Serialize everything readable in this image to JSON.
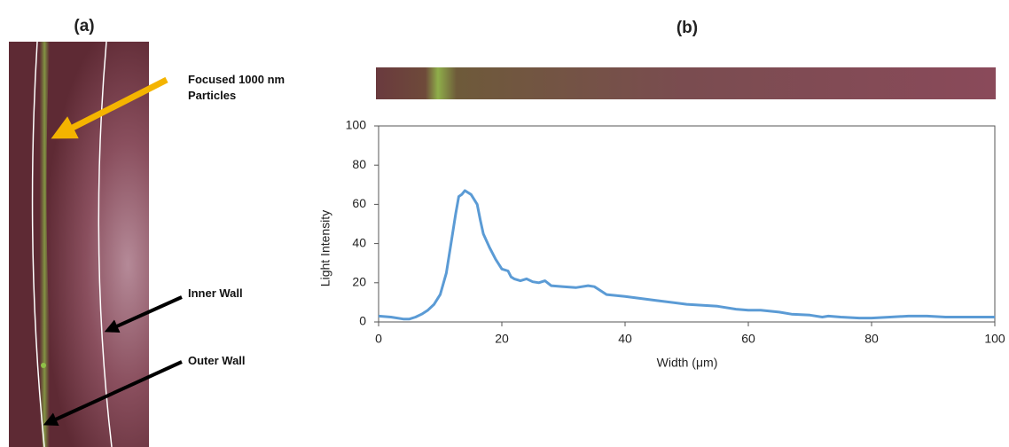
{
  "panel_labels": [
    "(a)",
    "(b)"
  ],
  "image_annotations": [
    "Focused 1000 nm Particles",
    "Inner Wall",
    "Outer Wall"
  ],
  "chart_data": {
    "type": "line",
    "x_label": "Width (μm)",
    "y_label": "Light Intensity",
    "x": [
      0,
      2,
      4,
      5,
      6,
      7,
      8,
      9,
      10,
      11,
      12,
      12.5,
      13,
      13.5,
      14,
      15,
      16,
      16.5,
      17,
      18,
      19,
      20,
      21,
      21.5,
      22,
      23,
      24,
      25,
      26,
      27,
      28,
      30,
      32,
      34,
      35,
      36,
      37,
      40,
      45,
      50,
      55,
      58,
      60,
      62,
      65,
      67,
      70,
      72,
      73,
      75,
      78,
      80,
      83,
      86,
      89,
      92,
      95,
      100
    ],
    "values": [
      3,
      2.5,
      1.5,
      1.5,
      2.5,
      4,
      6,
      9,
      14,
      25,
      45,
      55,
      64,
      65,
      67,
      65,
      60,
      52,
      45,
      38,
      32,
      27,
      26,
      23,
      22,
      21,
      22,
      20.5,
      20,
      21,
      18.5,
      18,
      17.5,
      18.5,
      18,
      16,
      14,
      13,
      11,
      9,
      8,
      6.5,
      6,
      6,
      5,
      4,
      3.5,
      2.5,
      3,
      2.5,
      2,
      2,
      2.5,
      3,
      3,
      2.5,
      2.5,
      2.5
    ],
    "color": "#5b9bd5",
    "xlim": [
      0,
      100
    ],
    "ylim": [
      0,
      100
    ],
    "xticks": [
      0,
      20,
      40,
      60,
      80,
      100
    ],
    "yticks": [
      0,
      20,
      40,
      60,
      80,
      100
    ]
  }
}
